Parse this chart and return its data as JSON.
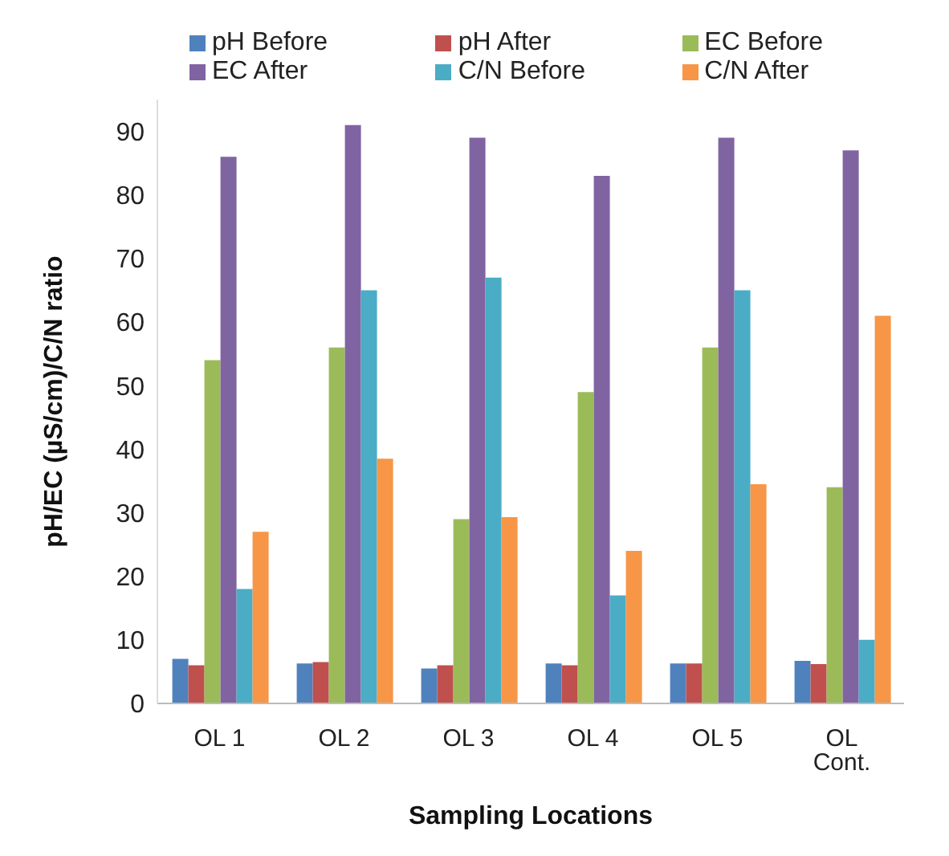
{
  "chart_data": {
    "type": "bar",
    "xlabel": "Sampling Locations",
    "ylabel": "pH/EC (µS/cm)/C/N ratio",
    "categories": [
      "OL 1",
      "OL 2",
      "OL 3",
      "OL 4",
      "OL 5",
      "OL Cont."
    ],
    "series": [
      {
        "name": "pH Before",
        "color": "#4f81bd",
        "values": [
          7,
          6.3,
          5.5,
          6.3,
          6.3,
          6.7
        ]
      },
      {
        "name": "pH After",
        "color": "#c0504d",
        "values": [
          6,
          6.5,
          6,
          6,
          6.3,
          6.2
        ]
      },
      {
        "name": "EC Before",
        "color": "#9bbb59",
        "values": [
          54,
          56,
          29,
          49,
          56,
          34
        ]
      },
      {
        "name": "EC After",
        "color": "#8064a2",
        "values": [
          86,
          91,
          89,
          83,
          89,
          87
        ]
      },
      {
        "name": "C/N Before",
        "color": "#4bacc6",
        "values": [
          18,
          65,
          67,
          17,
          65,
          10
        ]
      },
      {
        "name": "C/N After",
        "color": "#f79646",
        "values": [
          27,
          38.5,
          29.3,
          24,
          34.5,
          61
        ]
      }
    ],
    "ylim": [
      0,
      95
    ],
    "yticks": [
      0,
      10,
      20,
      30,
      40,
      50,
      60,
      70,
      80,
      90
    ],
    "grid": false,
    "legend": "top"
  }
}
